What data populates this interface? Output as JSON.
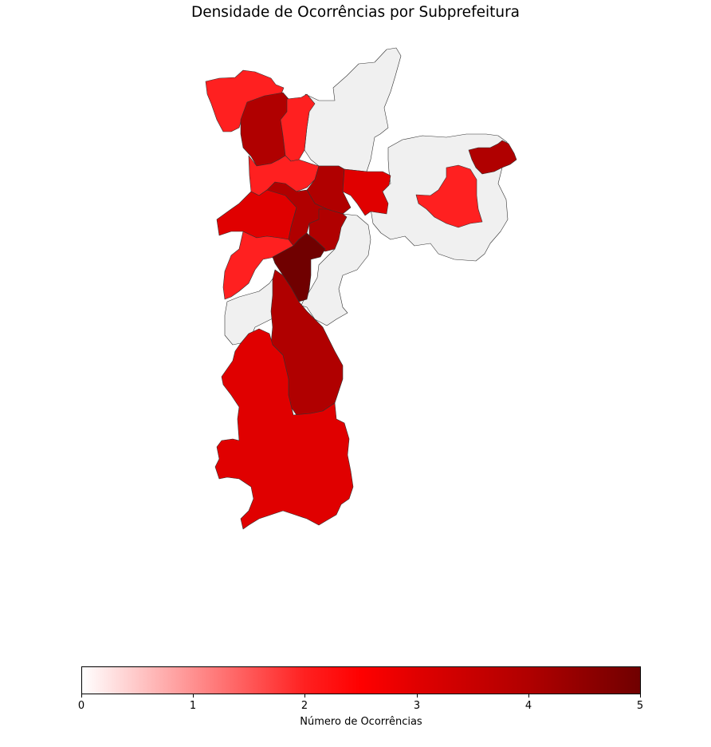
{
  "title": "Densidade de Ocorrências por Subprefeitura",
  "colorbar": {
    "label": "Número de Ocorrências",
    "ticks": [
      "0",
      "1",
      "2",
      "3",
      "4",
      "5"
    ],
    "min": 0,
    "max": 5,
    "colormap": "seismic (upper half, white to dark red)"
  },
  "colors": {
    "no_data": "#f0f0f0",
    "border": "#333333"
  },
  "chart_data": {
    "type": "choropleth",
    "title": "Densidade de Ocorrências por Subprefeitura",
    "legend_label": "Número de Ocorrências",
    "range": [
      0,
      5
    ],
    "regions": [
      {
        "id": "northwest",
        "value": 2
      },
      {
        "id": "north-west-inner",
        "value": 4
      },
      {
        "id": "north-narrow",
        "value": 2
      },
      {
        "id": "west-band",
        "value": 2
      },
      {
        "id": "center-north",
        "value": 4
      },
      {
        "id": "center-east-red",
        "value": 3
      },
      {
        "id": "west-mid",
        "value": 3
      },
      {
        "id": "center-west",
        "value": 4
      },
      {
        "id": "center-east",
        "value": 4
      },
      {
        "id": "southwest-band",
        "value": 2
      },
      {
        "id": "center-south",
        "value": 5
      },
      {
        "id": "south-central",
        "value": 4
      },
      {
        "id": "far-south",
        "value": 3
      },
      {
        "id": "east-mid",
        "value": 2
      },
      {
        "id": "far-east",
        "value": 4
      },
      {
        "id": "north-unshaded",
        "value": null
      },
      {
        "id": "east-unshaded",
        "value": null
      },
      {
        "id": "south-unshaded",
        "value": null
      }
    ]
  }
}
